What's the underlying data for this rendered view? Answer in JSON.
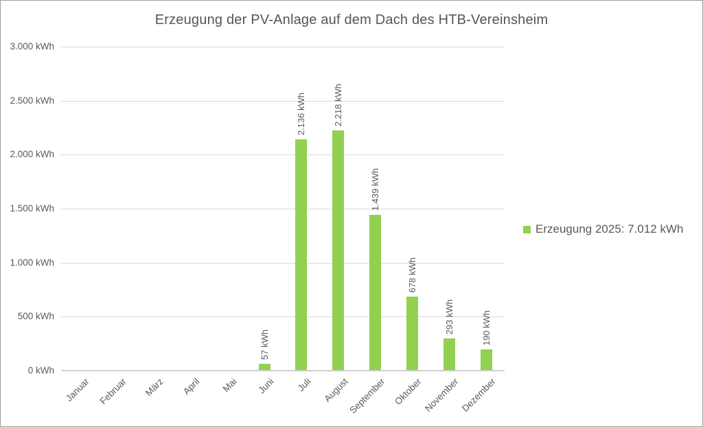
{
  "chart_data": {
    "type": "bar",
    "title": "Erzeugung der PV-Anlage auf dem Dach des HTB-Vereinsheim",
    "categories": [
      "Januar",
      "Februar",
      "März",
      "April",
      "Mai",
      "Juni",
      "Juli",
      "August",
      "September",
      "Oktober",
      "November",
      "Dezember"
    ],
    "series": [
      {
        "name": "Erzeugung 2025",
        "values": [
          0,
          0,
          0,
          0,
          0,
          57,
          2136,
          2218,
          1439,
          678,
          293,
          190
        ],
        "data_labels": [
          "",
          "",
          "",
          "",
          "",
          "57 kWh",
          "2.136 kWh",
          "2.218 kWh",
          "1.439 kWh",
          "678 kWh",
          "293 kWh",
          "190 kWh"
        ]
      }
    ],
    "total_annual": "7.012 kWh",
    "ylim": [
      0,
      3000
    ],
    "ytick_step": 500,
    "ytick_labels": [
      "0 kWh",
      "500 kWh",
      "1.000 kWh",
      "1.500 kWh",
      "2.000 kWh",
      "2.500 kWh",
      "3.000 kWh"
    ],
    "xlabel": "",
    "ylabel": "",
    "grid": true,
    "legend": {
      "position": "right",
      "label": "Erzeugung 2025: 7.012 kWh"
    },
    "colors": {
      "bar": "#92d050",
      "gridline": "#d9d9d9",
      "axis_line": "#d0d0d0",
      "title_text": "#555555",
      "axis_text": "#595959",
      "data_label_text": "#595959",
      "legend_text": "#595959",
      "background": "#ffffff",
      "frame_border": "#9e9e9e"
    }
  }
}
